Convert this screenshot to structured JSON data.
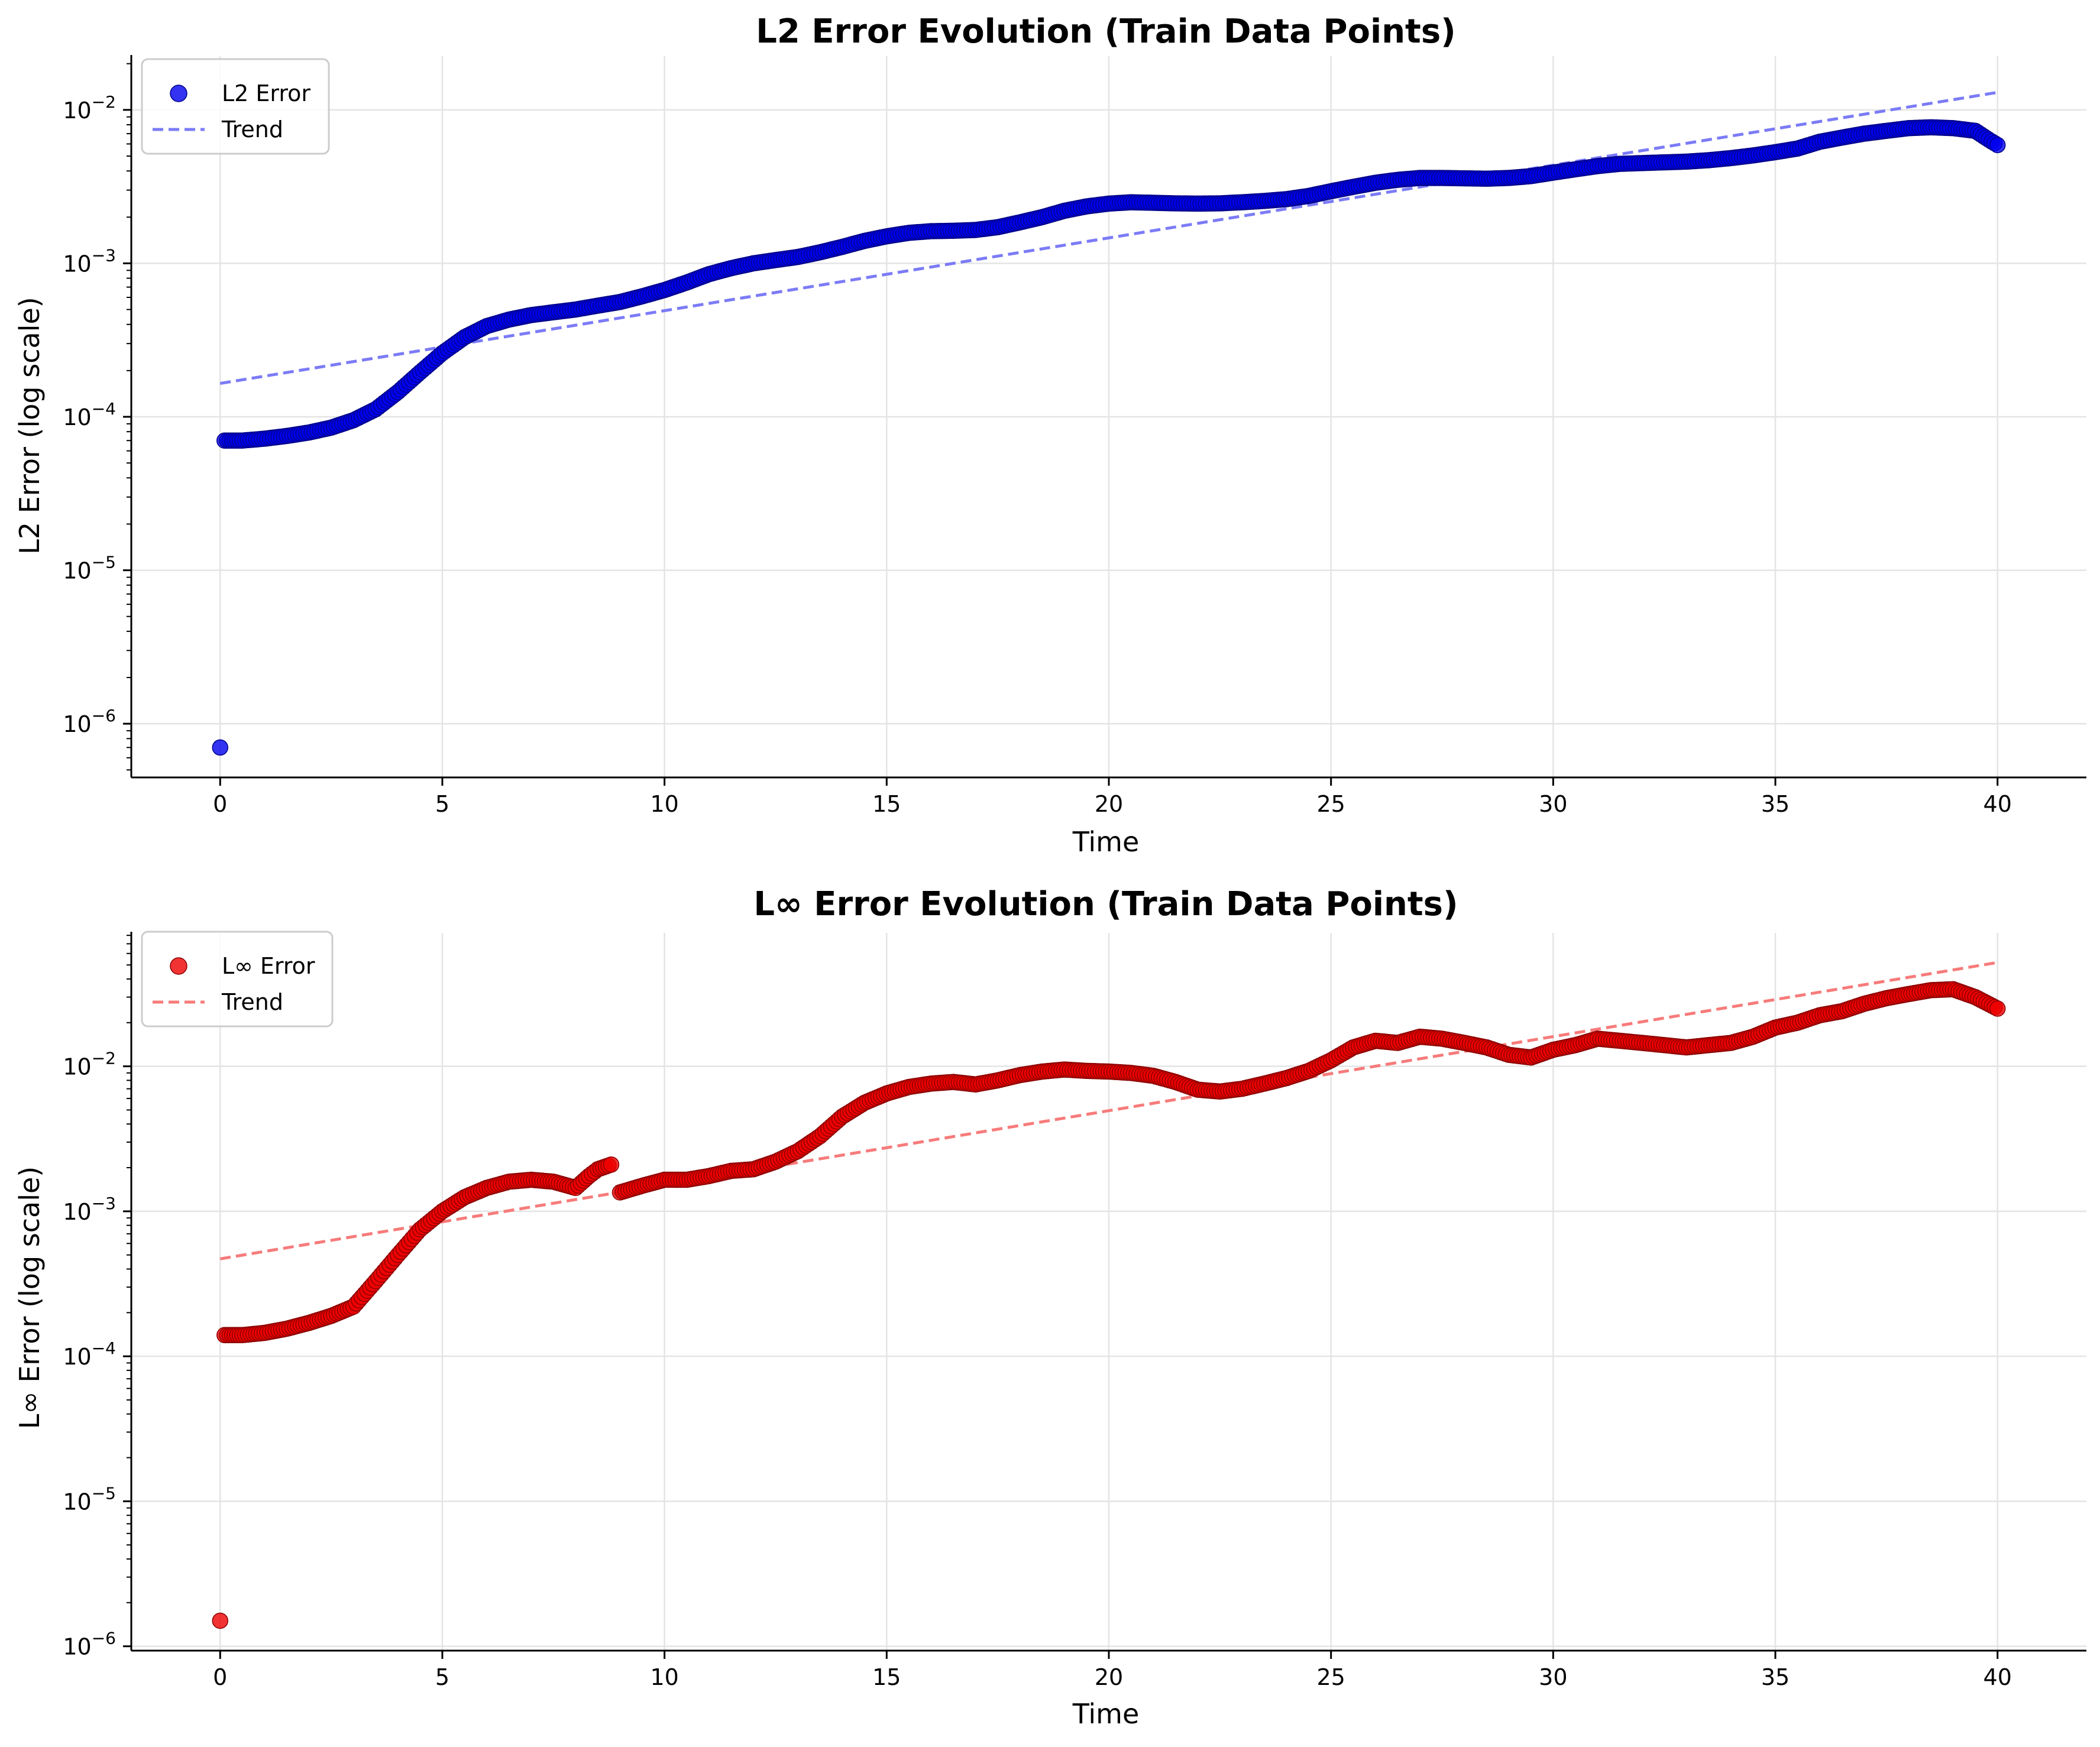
{
  "chart_data": [
    {
      "type": "scatter",
      "title": "L2 Error Evolution (Train Data Points)",
      "xlabel": "Time",
      "ylabel": "L2 Error (log scale)",
      "yscale": "log",
      "xlim": [
        -2,
        42
      ],
      "ylim_exponents": [
        -6.35,
        -1.65
      ],
      "xticks": [
        0,
        5,
        10,
        15,
        20,
        25,
        30,
        35,
        40
      ],
      "yticks": [
        {
          "exp": -6,
          "base": "10",
          "sup": "−6"
        },
        {
          "exp": -5,
          "base": "10",
          "sup": "−5"
        },
        {
          "exp": -4,
          "base": "10",
          "sup": "−4"
        },
        {
          "exp": -3,
          "base": "10",
          "sup": "−3"
        },
        {
          "exp": -2,
          "base": "10",
          "sup": "−2"
        }
      ],
      "grid": true,
      "legend_position": "top-left",
      "colors": {
        "points": "#0000ee",
        "edge": "#00008b",
        "trend": "#7b7bf7"
      },
      "series": [
        {
          "name": "L2 Error",
          "kind": "scatter",
          "x": [
            0,
            0.1,
            0.5,
            1,
            1.5,
            2,
            2.5,
            3,
            3.5,
            4,
            4.5,
            5,
            5.5,
            6,
            6.5,
            7,
            7.5,
            8,
            8.5,
            9,
            9.5,
            10,
            10.5,
            11,
            11.5,
            12,
            12.5,
            13,
            13.5,
            14,
            14.5,
            15,
            15.5,
            16,
            16.5,
            17,
            17.5,
            18,
            18.5,
            19,
            19.5,
            20,
            20.5,
            21,
            21.5,
            22,
            22.5,
            23,
            23.5,
            24,
            24.5,
            25,
            25.5,
            26,
            26.5,
            27,
            27.5,
            28,
            28.5,
            29,
            29.5,
            30,
            30.5,
            31,
            31.5,
            32,
            32.5,
            33,
            33.5,
            34,
            34.5,
            35,
            35.5,
            36,
            36.5,
            37,
            37.5,
            38,
            38.5,
            39,
            39.5,
            39.8,
            40
          ],
          "y": [
            7e-07,
            7e-05,
            7e-05,
            7.2e-05,
            7.5e-05,
            7.9e-05,
            8.5e-05,
            9.5e-05,
            0.000112,
            0.000145,
            0.000195,
            0.00026,
            0.00033,
            0.00039,
            0.00043,
            0.00046,
            0.00048,
            0.0005,
            0.00053,
            0.00056,
            0.00061,
            0.00067,
            0.00075,
            0.00085,
            0.00093,
            0.001,
            0.00105,
            0.0011,
            0.00118,
            0.00128,
            0.0014,
            0.0015,
            0.00158,
            0.00162,
            0.00163,
            0.00165,
            0.00172,
            0.00185,
            0.002,
            0.0022,
            0.00235,
            0.00245,
            0.0025,
            0.00248,
            0.00246,
            0.00245,
            0.00246,
            0.0025,
            0.00255,
            0.00262,
            0.00275,
            0.00295,
            0.00315,
            0.00335,
            0.0035,
            0.0036,
            0.0036,
            0.00358,
            0.00356,
            0.0036,
            0.0037,
            0.0039,
            0.0041,
            0.0043,
            0.00445,
            0.0045,
            0.00455,
            0.0046,
            0.0047,
            0.00485,
            0.00505,
            0.0053,
            0.0056,
            0.0062,
            0.0066,
            0.007,
            0.0073,
            0.0076,
            0.0077,
            0.0076,
            0.0073,
            0.0064,
            0.0059
          ]
        },
        {
          "name": "Trend",
          "kind": "line",
          "x": [
            0,
            40
          ],
          "y": [
            0.000165,
            0.013
          ]
        }
      ]
    },
    {
      "type": "scatter",
      "title": "L∞ Error Evolution (Train Data Points)",
      "xlabel": "Time",
      "ylabel": "L∞ Error (log scale)",
      "yscale": "log",
      "xlim": [
        -2,
        42
      ],
      "ylim_exponents": [
        -6.03,
        -1.08
      ],
      "xticks": [
        0,
        5,
        10,
        15,
        20,
        25,
        30,
        35,
        40
      ],
      "yticks": [
        {
          "exp": -6,
          "base": "10",
          "sup": "−6"
        },
        {
          "exp": -5,
          "base": "10",
          "sup": "−5"
        },
        {
          "exp": -4,
          "base": "10",
          "sup": "−4"
        },
        {
          "exp": -3,
          "base": "10",
          "sup": "−3"
        },
        {
          "exp": -2,
          "base": "10",
          "sup": "−2"
        }
      ],
      "grid": true,
      "legend_position": "top-left",
      "colors": {
        "points": "#ee0000",
        "edge": "#8b0000",
        "trend": "#f77b7b"
      },
      "series": [
        {
          "name": "L∞ Error",
          "kind": "scatter",
          "x": [
            0,
            0.1,
            0.5,
            1,
            1.5,
            2,
            2.5,
            3,
            3.5,
            4,
            4.5,
            5,
            5.5,
            6,
            6.5,
            7,
            7.5,
            8,
            8.3,
            8.5,
            8.8,
            9,
            9.5,
            10,
            10.5,
            11,
            11.5,
            12,
            12.5,
            13,
            13.5,
            14,
            14.5,
            15,
            15.5,
            16,
            16.5,
            17,
            17.5,
            18,
            18.5,
            19,
            19.5,
            20,
            20.5,
            21,
            21.5,
            22,
            22.5,
            23,
            23.5,
            24,
            24.5,
            25,
            25.5,
            26,
            26.5,
            27,
            27.5,
            28,
            28.5,
            29,
            29.5,
            30,
            30.5,
            31,
            31.5,
            32,
            32.5,
            33,
            33.5,
            34,
            34.5,
            35,
            35.5,
            36,
            36.5,
            37,
            37.5,
            38,
            38.5,
            39,
            39.5,
            40
          ],
          "y": [
            1.5e-06,
            0.00014,
            0.00014,
            0.000145,
            0.000155,
            0.00017,
            0.00019,
            0.00022,
            0.00033,
            0.0005,
            0.00075,
            0.001,
            0.00125,
            0.00145,
            0.0016,
            0.00165,
            0.0016,
            0.00145,
            0.00175,
            0.00195,
            0.0021,
            0.00135,
            0.0015,
            0.00165,
            0.00165,
            0.00175,
            0.0019,
            0.00195,
            0.0022,
            0.0026,
            0.0033,
            0.0045,
            0.0056,
            0.0065,
            0.0072,
            0.0076,
            0.0078,
            0.0075,
            0.008,
            0.0087,
            0.0092,
            0.0095,
            0.0093,
            0.0092,
            0.009,
            0.0086,
            0.0078,
            0.0069,
            0.0067,
            0.007,
            0.0076,
            0.0083,
            0.0093,
            0.011,
            0.0135,
            0.015,
            0.0145,
            0.016,
            0.0155,
            0.0145,
            0.0135,
            0.012,
            0.0115,
            0.013,
            0.014,
            0.0155,
            0.015,
            0.0145,
            0.014,
            0.0135,
            0.014,
            0.0145,
            0.016,
            0.0185,
            0.02,
            0.0225,
            0.024,
            0.027,
            0.0295,
            0.0315,
            0.0335,
            0.034,
            0.03,
            0.025
          ]
        },
        {
          "name": "Trend",
          "kind": "line",
          "x": [
            0,
            40
          ],
          "y": [
            0.00047,
            0.052
          ]
        }
      ]
    }
  ]
}
